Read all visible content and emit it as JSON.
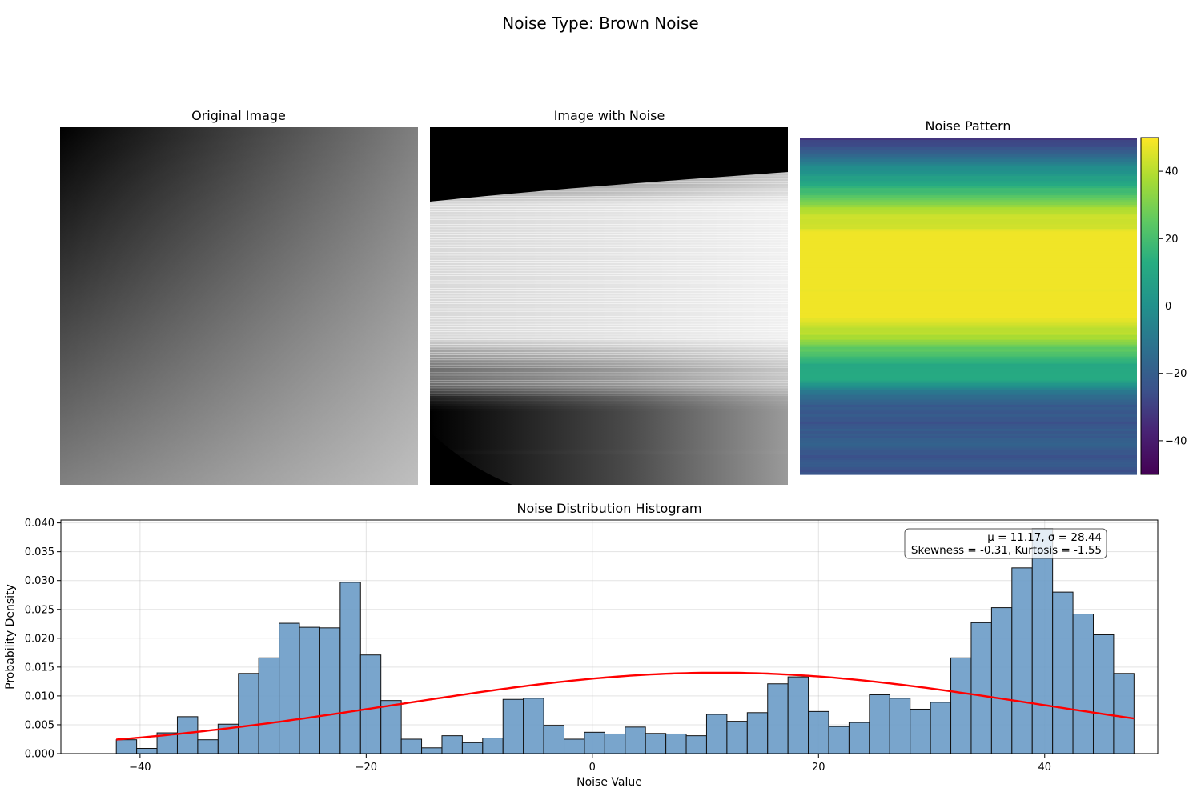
{
  "suptitle": "Noise Type: Brown Noise",
  "panels": {
    "original_title": "Original Image",
    "noisy_title": "Image with Noise",
    "noise_title": "Noise Pattern",
    "colorbar": {
      "min": -50,
      "max": 50,
      "ticks": [
        40,
        20,
        0,
        -20,
        -40
      ],
      "colormap": "viridis"
    }
  },
  "chart_data": {
    "type": "bar",
    "title": "Noise Distribution Histogram",
    "xlabel": "Noise Value",
    "ylabel": "Probability Density",
    "xlim": [
      -47,
      50
    ],
    "ylim": [
      0,
      0.0405
    ],
    "xticks": [
      -40,
      -20,
      0,
      20,
      40
    ],
    "yticks": [
      0.0,
      0.005,
      0.01,
      0.015,
      0.02,
      0.025,
      0.03,
      0.035,
      0.04
    ],
    "grid": true,
    "bin_start": -42.1,
    "bin_width": 1.8,
    "values": [
      0.0024,
      0.0009,
      0.0036,
      0.0064,
      0.0024,
      0.0051,
      0.0139,
      0.0166,
      0.0226,
      0.0219,
      0.0218,
      0.0297,
      0.0171,
      0.0092,
      0.0025,
      0.001,
      0.0031,
      0.0019,
      0.0027,
      0.0094,
      0.0096,
      0.0049,
      0.0025,
      0.0037,
      0.0034,
      0.0046,
      0.0035,
      0.0034,
      0.0031,
      0.0068,
      0.0056,
      0.0071,
      0.0121,
      0.0133,
      0.0073,
      0.0047,
      0.0054,
      0.0102,
      0.0096,
      0.0077,
      0.0089,
      0.0166,
      0.0227,
      0.0253,
      0.0322,
      0.039,
      0.028,
      0.0242,
      0.0206,
      0.0139
    ],
    "bar_color": "#6a9bc6",
    "fit_curve": {
      "mean": 11.17,
      "std": 28.44,
      "color": "#ff0000"
    },
    "stats_line1": "μ = 11.17, σ = 28.44",
    "stats_line2": "Skewness = -0.31, Kurtosis = -1.55",
    "legend_position": "top-right"
  }
}
